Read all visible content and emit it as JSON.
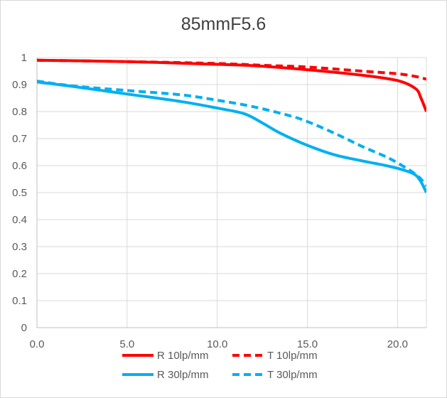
{
  "chart_data": {
    "type": "line",
    "title": "85mmF5.6",
    "xlabel": "",
    "ylabel": "",
    "xlim": [
      0,
      21.6
    ],
    "ylim": [
      0,
      1
    ],
    "grid": true,
    "legend_position": "bottom",
    "x_ticks": [
      "0.0",
      "5.0",
      "10.0",
      "15.0",
      "20.0"
    ],
    "x_tick_values": [
      0,
      5,
      10,
      15,
      20
    ],
    "y_ticks": [
      "0",
      "0.1",
      "0.2",
      "0.3",
      "0.4",
      "0.5",
      "0.6",
      "0.7",
      "0.8",
      "0.9",
      "1"
    ],
    "y_tick_values": [
      0,
      0.1,
      0.2,
      0.3,
      0.4,
      0.5,
      0.6,
      0.7,
      0.8,
      0.9,
      1.0
    ],
    "series": [
      {
        "name": "R 10lp/mm",
        "color": "#ff0000",
        "dash": "solid",
        "points": [
          [
            0,
            0.99
          ],
          [
            5,
            0.985
          ],
          [
            10,
            0.975
          ],
          [
            12,
            0.97
          ],
          [
            15,
            0.955
          ],
          [
            18,
            0.935
          ],
          [
            20,
            0.915
          ],
          [
            21,
            0.885
          ],
          [
            21.3,
            0.85
          ],
          [
            21.6,
            0.8
          ]
        ]
      },
      {
        "name": "T 10lp/mm",
        "color": "#ff0000",
        "dash": "dashed",
        "points": [
          [
            0,
            0.99
          ],
          [
            5,
            0.985
          ],
          [
            10,
            0.978
          ],
          [
            13,
            0.97
          ],
          [
            15,
            0.965
          ],
          [
            18,
            0.95
          ],
          [
            20,
            0.94
          ],
          [
            21,
            0.93
          ],
          [
            21.6,
            0.92
          ]
        ]
      },
      {
        "name": "R 30lp/mm",
        "color": "#00b0f0",
        "dash": "solid",
        "points": [
          [
            0,
            0.91
          ],
          [
            2,
            0.893
          ],
          [
            5,
            0.865
          ],
          [
            8,
            0.837
          ],
          [
            10,
            0.813
          ],
          [
            11.5,
            0.792
          ],
          [
            12.5,
            0.758
          ],
          [
            13.5,
            0.72
          ],
          [
            15,
            0.675
          ],
          [
            16.5,
            0.64
          ],
          [
            18,
            0.618
          ],
          [
            19.5,
            0.598
          ],
          [
            20.5,
            0.58
          ],
          [
            21,
            0.565
          ],
          [
            21.3,
            0.54
          ],
          [
            21.6,
            0.5
          ]
        ]
      },
      {
        "name": "T 30lp/mm",
        "color": "#00b0f0",
        "dash": "dashed",
        "points": [
          [
            0,
            0.913
          ],
          [
            2,
            0.895
          ],
          [
            5,
            0.878
          ],
          [
            8,
            0.862
          ],
          [
            10,
            0.842
          ],
          [
            12,
            0.818
          ],
          [
            14,
            0.785
          ],
          [
            15,
            0.763
          ],
          [
            16.5,
            0.72
          ],
          [
            18,
            0.672
          ],
          [
            19.5,
            0.628
          ],
          [
            20.5,
            0.59
          ],
          [
            21,
            0.568
          ],
          [
            21.3,
            0.55
          ],
          [
            21.6,
            0.525
          ]
        ]
      }
    ]
  }
}
